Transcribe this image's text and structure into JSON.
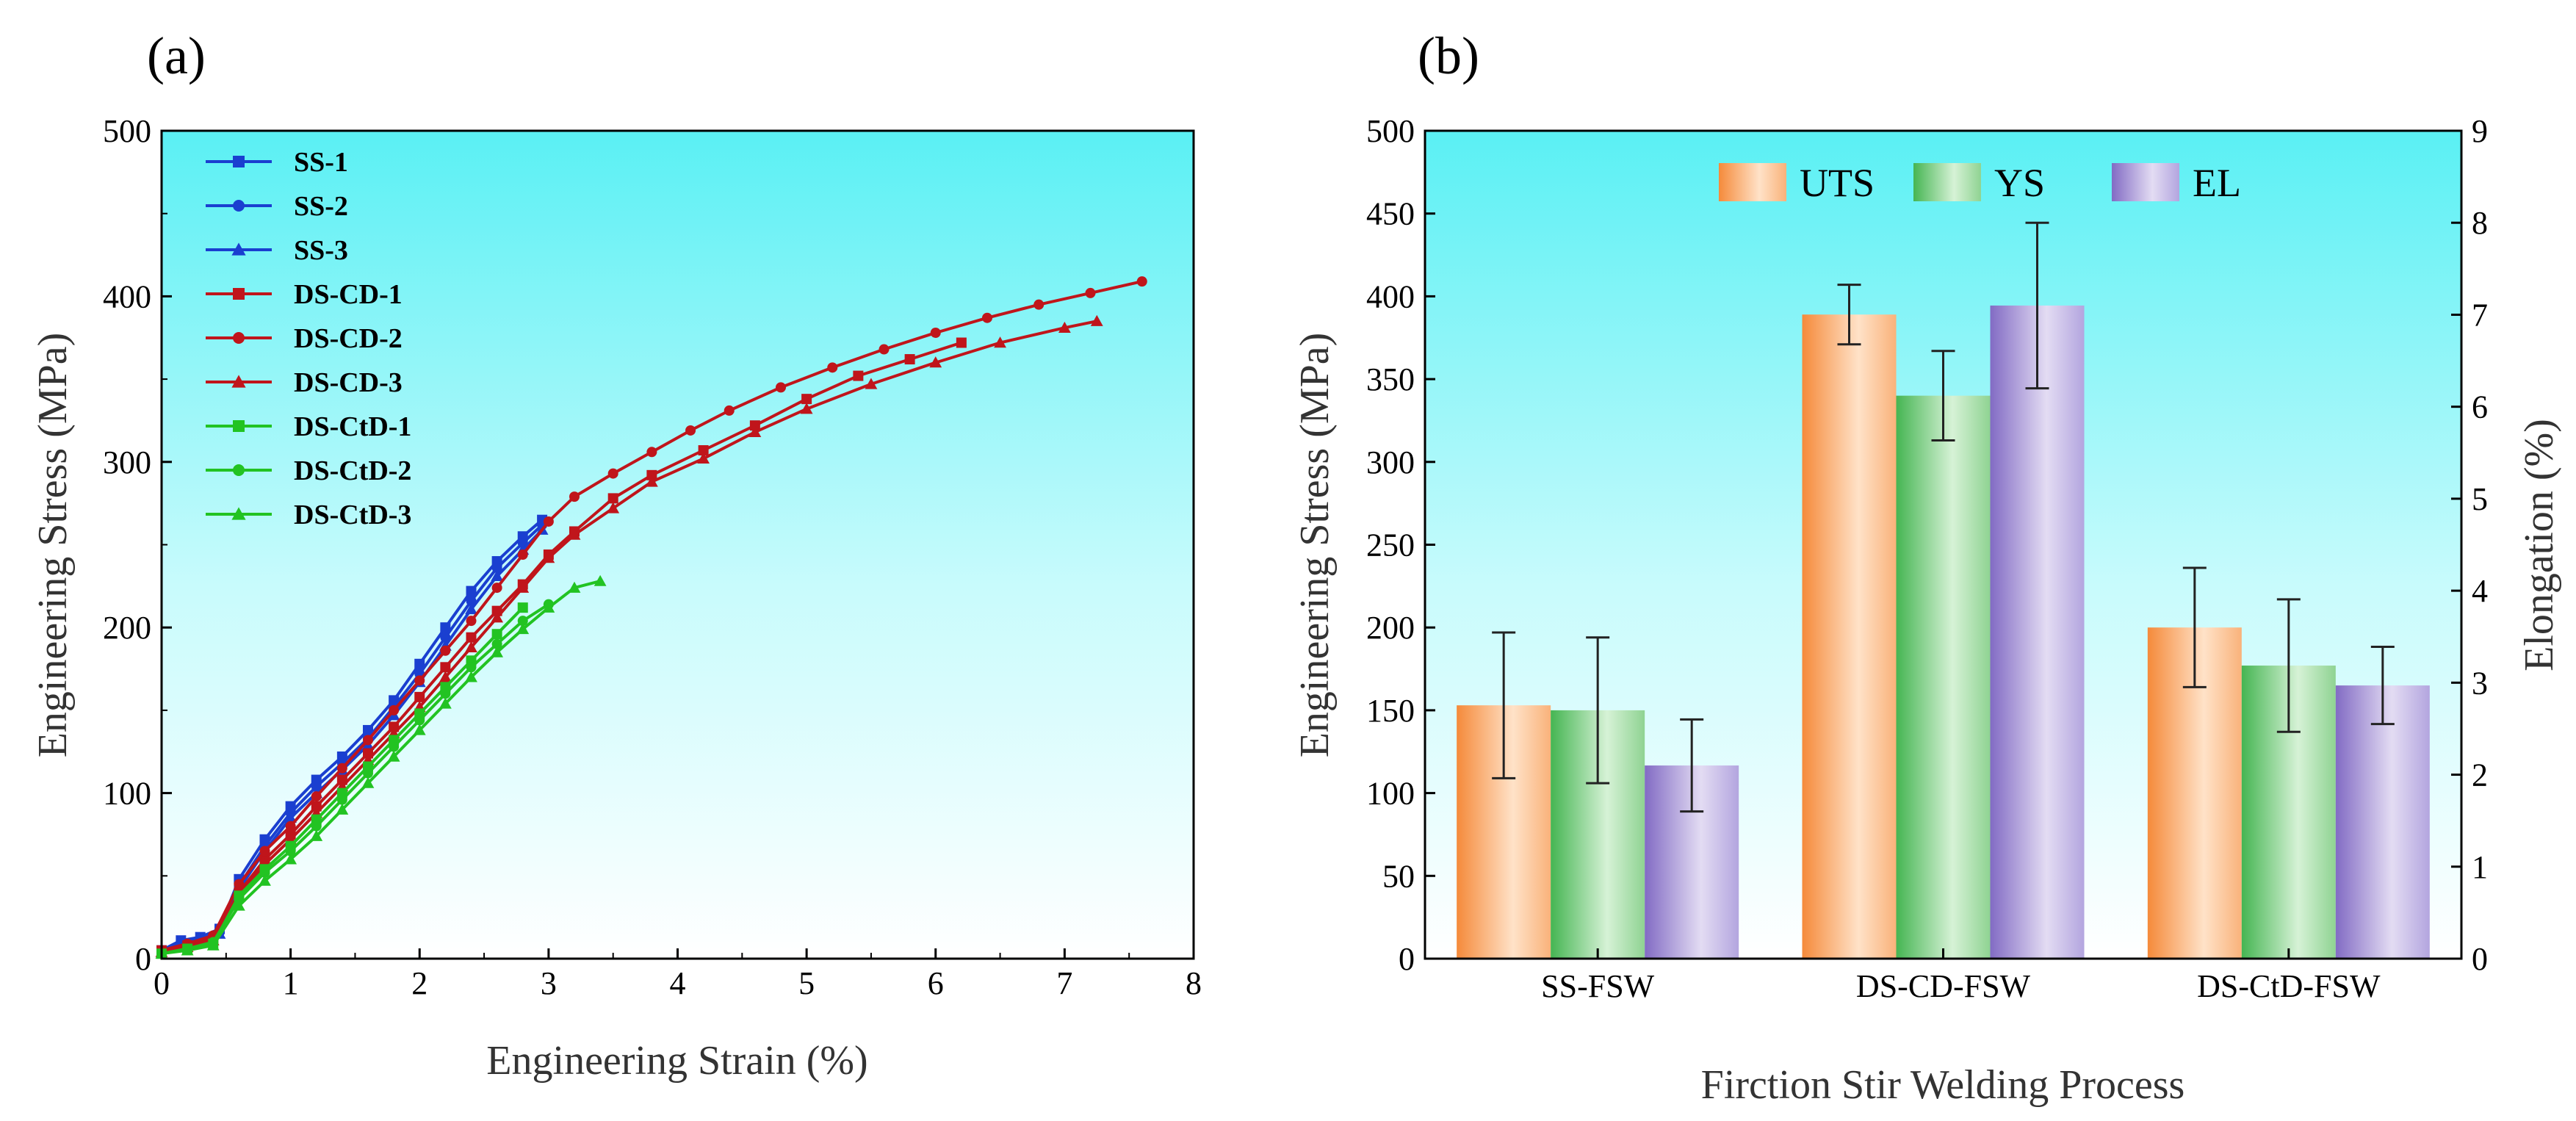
{
  "chart_data": [
    {
      "type": "line",
      "panel_label": "(a)",
      "xlabel": "Engineering Strain (%)",
      "ylabel": "Engineering Stress (MPa)",
      "xlim": [
        0,
        8
      ],
      "ylim": [
        0,
        500
      ],
      "xticks": [
        "0",
        "1",
        "2",
        "3",
        "4",
        "5",
        "6",
        "7",
        "8"
      ],
      "yticks": [
        "0",
        "100",
        "200",
        "300",
        "400",
        "500"
      ],
      "legend_position": "top-left",
      "series": [
        {
          "name": "SS-1",
          "color": "#1a3fd0",
          "marker": "square",
          "x": [
            0,
            0.15,
            0.3,
            0.45,
            0.6,
            0.8,
            1.0,
            1.2,
            1.4,
            1.6,
            1.8,
            2.0,
            2.2,
            2.4,
            2.6,
            2.8,
            2.95
          ],
          "y": [
            5,
            11,
            13,
            18,
            48,
            72,
            92,
            108,
            122,
            138,
            156,
            178,
            200,
            222,
            240,
            255,
            265
          ]
        },
        {
          "name": "SS-2",
          "color": "#1a3fd0",
          "marker": "circle",
          "x": [
            0,
            0.15,
            0.3,
            0.45,
            0.6,
            0.8,
            1.0,
            1.2,
            1.4,
            1.6,
            1.8,
            2.0,
            2.2,
            2.4,
            2.6,
            2.8,
            2.95
          ],
          "y": [
            4,
            9,
            12,
            16,
            44,
            68,
            88,
            104,
            118,
            133,
            152,
            172,
            194,
            216,
            236,
            251,
            262
          ]
        },
        {
          "name": "SS-3",
          "color": "#1a3fd0",
          "marker": "triangle",
          "x": [
            0,
            0.15,
            0.3,
            0.45,
            0.6,
            0.8,
            1.0,
            1.2,
            1.4,
            1.6,
            1.8,
            2.0,
            2.2,
            2.4,
            2.6,
            2.8,
            2.95
          ],
          "y": [
            3,
            8,
            11,
            15,
            42,
            65,
            85,
            100,
            114,
            129,
            147,
            167,
            189,
            211,
            231,
            247,
            259
          ]
        },
        {
          "name": "DS-CD-1",
          "color": "#c0151b",
          "marker": "square",
          "x": [
            0,
            0.2,
            0.4,
            0.6,
            0.8,
            1.0,
            1.2,
            1.4,
            1.6,
            1.8,
            2.0,
            2.2,
            2.4,
            2.6,
            2.8,
            3.0,
            3.2,
            3.5,
            3.8,
            4.2,
            4.6,
            5.0,
            5.4,
            5.8,
            6.2
          ],
          "y": [
            5,
            8,
            12,
            40,
            60,
            75,
            92,
            108,
            124,
            140,
            158,
            176,
            194,
            210,
            226,
            244,
            258,
            278,
            292,
            307,
            322,
            338,
            352,
            362,
            372
          ]
        },
        {
          "name": "DS-CD-2",
          "color": "#c0151b",
          "marker": "circle",
          "x": [
            0,
            0.2,
            0.4,
            0.6,
            0.8,
            1.0,
            1.2,
            1.4,
            1.6,
            1.8,
            2.0,
            2.2,
            2.4,
            2.6,
            2.8,
            3.0,
            3.2,
            3.5,
            3.8,
            4.1,
            4.4,
            4.8,
            5.2,
            5.6,
            6.0,
            6.4,
            6.8,
            7.2,
            7.6
          ],
          "y": [
            5,
            9,
            14,
            45,
            65,
            80,
            98,
            115,
            132,
            150,
            168,
            186,
            204,
            224,
            244,
            264,
            279,
            293,
            306,
            319,
            331,
            345,
            357,
            368,
            378,
            387,
            395,
            402,
            409
          ]
        },
        {
          "name": "DS-CD-3",
          "color": "#c0151b",
          "marker": "triangle",
          "x": [
            0,
            0.2,
            0.4,
            0.6,
            0.8,
            1.0,
            1.2,
            1.4,
            1.6,
            1.8,
            2.0,
            2.2,
            2.4,
            2.6,
            2.8,
            3.0,
            3.2,
            3.5,
            3.8,
            4.2,
            4.6,
            5.0,
            5.5,
            6.0,
            6.5,
            7.0,
            7.25
          ],
          "y": [
            4,
            7,
            11,
            38,
            57,
            72,
            88,
            104,
            120,
            136,
            152,
            170,
            188,
            206,
            224,
            242,
            256,
            272,
            288,
            302,
            318,
            332,
            347,
            360,
            372,
            381,
            385
          ]
        },
        {
          "name": "DS-CtD-1",
          "color": "#22c322",
          "marker": "square",
          "x": [
            0,
            0.2,
            0.4,
            0.6,
            0.8,
            1.0,
            1.2,
            1.4,
            1.6,
            1.8,
            2.0,
            2.2,
            2.4,
            2.6,
            2.8
          ],
          "y": [
            3,
            6,
            9,
            38,
            54,
            68,
            84,
            100,
            116,
            132,
            148,
            164,
            180,
            196,
            212
          ]
        },
        {
          "name": "DS-CtD-2",
          "color": "#22c322",
          "marker": "circle",
          "x": [
            0,
            0.2,
            0.4,
            0.6,
            0.8,
            1.0,
            1.2,
            1.4,
            1.6,
            1.8,
            2.0,
            2.2,
            2.4,
            2.6,
            2.8,
            3.0
          ],
          "y": [
            3,
            6,
            10,
            36,
            52,
            65,
            80,
            96,
            112,
            128,
            144,
            160,
            176,
            190,
            204,
            214
          ]
        },
        {
          "name": "DS-CtD-3",
          "color": "#22c322",
          "marker": "triangle",
          "x": [
            0,
            0.2,
            0.4,
            0.6,
            0.8,
            1.0,
            1.2,
            1.4,
            1.6,
            1.8,
            2.0,
            2.2,
            2.4,
            2.6,
            2.8,
            3.0,
            3.2,
            3.4
          ],
          "y": [
            3,
            5,
            8,
            32,
            47,
            60,
            74,
            90,
            106,
            122,
            138,
            154,
            170,
            185,
            199,
            212,
            224,
            228
          ]
        }
      ]
    },
    {
      "type": "bar",
      "panel_label": "(b)",
      "xlabel": "Firction Stir Welding Process",
      "ylabel": "Engineering Stress (MPa)",
      "ylabel_right": "Elongation (%)",
      "categories": [
        "SS-FSW",
        "DS-CD-FSW",
        "DS-CtD-FSW"
      ],
      "ylim": [
        0,
        500
      ],
      "ylim_right": [
        0,
        9
      ],
      "yticks": [
        "0",
        "50",
        "100",
        "150",
        "200",
        "250",
        "300",
        "350",
        "400",
        "450",
        "500"
      ],
      "yticks_right": [
        "0",
        "1",
        "2",
        "3",
        "4",
        "5",
        "6",
        "7",
        "8",
        "9"
      ],
      "legend_position": "top-center",
      "series": [
        {
          "name": "UTS",
          "axis": "left",
          "color": "#f28a3c",
          "values": [
            153,
            389,
            200
          ],
          "errors": [
            44,
            18,
            36
          ]
        },
        {
          "name": "YS",
          "axis": "left",
          "color": "#4dbb5a",
          "values": [
            150,
            340,
            177
          ],
          "errors": [
            44,
            27,
            40
          ]
        },
        {
          "name": "EL",
          "axis": "right",
          "color": "#8a73c7",
          "values": [
            2.1,
            7.1,
            2.97
          ],
          "errors": [
            0.5,
            0.9,
            0.42
          ]
        }
      ]
    }
  ]
}
